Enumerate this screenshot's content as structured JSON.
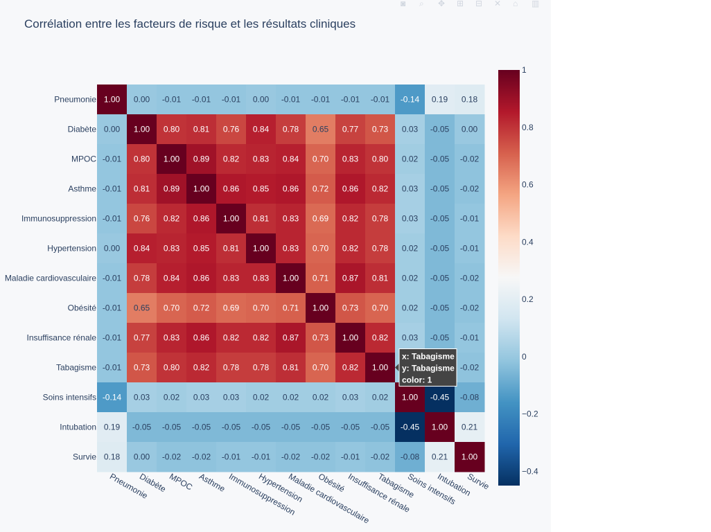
{
  "toolbar": {
    "icons": [
      "camera-icon",
      "zoom-icon",
      "pan-icon",
      "zoom-in-icon",
      "zoom-out-icon",
      "autoscale-icon",
      "reset-axes-icon",
      "plotly-logo-icon"
    ]
  },
  "chart_data": {
    "type": "heatmap",
    "title": "Corrélation entre les facteurs de risque et les résultats cliniques",
    "labels": [
      "Pneumonie",
      "Diabète",
      "MPOC",
      "Asthme",
      "Immunosuppression",
      "Hypertension",
      "Maladie cardiovasculaire",
      "Obésité",
      "Insuffisance rénale",
      "Tabagisme",
      "Soins intensifs",
      "Intubation",
      "Survie"
    ],
    "z": [
      [
        1.0,
        0.0,
        -0.01,
        -0.01,
        -0.01,
        0.0,
        -0.01,
        -0.01,
        -0.01,
        -0.01,
        -0.14,
        0.19,
        0.18
      ],
      [
        0.0,
        1.0,
        0.8,
        0.81,
        0.76,
        0.84,
        0.78,
        0.65,
        0.77,
        0.73,
        0.03,
        -0.05,
        0.0
      ],
      [
        -0.01,
        0.8,
        1.0,
        0.89,
        0.82,
        0.83,
        0.84,
        0.7,
        0.83,
        0.8,
        0.02,
        -0.05,
        -0.02
      ],
      [
        -0.01,
        0.81,
        0.89,
        1.0,
        0.86,
        0.85,
        0.86,
        0.72,
        0.86,
        0.82,
        0.03,
        -0.05,
        -0.02
      ],
      [
        -0.01,
        0.76,
        0.82,
        0.86,
        1.0,
        0.81,
        0.83,
        0.69,
        0.82,
        0.78,
        0.03,
        -0.05,
        -0.01
      ],
      [
        0.0,
        0.84,
        0.83,
        0.85,
        0.81,
        1.0,
        0.83,
        0.7,
        0.82,
        0.78,
        0.02,
        -0.05,
        -0.01
      ],
      [
        -0.01,
        0.78,
        0.84,
        0.86,
        0.83,
        0.83,
        1.0,
        0.71,
        0.87,
        0.81,
        0.02,
        -0.05,
        -0.02
      ],
      [
        -0.01,
        0.65,
        0.7,
        0.72,
        0.69,
        0.7,
        0.71,
        1.0,
        0.73,
        0.7,
        0.02,
        -0.05,
        -0.02
      ],
      [
        -0.01,
        0.77,
        0.83,
        0.86,
        0.82,
        0.82,
        0.87,
        0.73,
        1.0,
        0.82,
        0.03,
        -0.05,
        -0.01
      ],
      [
        -0.01,
        0.73,
        0.8,
        0.82,
        0.78,
        0.78,
        0.81,
        0.7,
        0.82,
        1.0,
        0.02,
        -0.05,
        -0.02
      ],
      [
        -0.14,
        0.03,
        0.02,
        0.03,
        0.03,
        0.02,
        0.02,
        0.02,
        0.03,
        0.02,
        1.0,
        -0.45,
        -0.08
      ],
      [
        0.19,
        -0.05,
        -0.05,
        -0.05,
        -0.05,
        -0.05,
        -0.05,
        -0.05,
        -0.05,
        -0.05,
        -0.45,
        1.0,
        0.21
      ],
      [
        0.18,
        0.0,
        -0.02,
        -0.02,
        -0.01,
        -0.01,
        -0.02,
        -0.02,
        -0.01,
        -0.02,
        -0.08,
        0.21,
        1.0
      ]
    ],
    "zmin": -0.45,
    "zmax": 1.0,
    "colorscale": "RdBu (reversed)",
    "colorbar": {
      "ticks": [
        1,
        0.8,
        0.6,
        0.4,
        0.2,
        0,
        -0.2,
        -0.4
      ],
      "tick_labels": [
        "1",
        "0.8",
        "0.6",
        "0.4",
        "0.2",
        "0",
        "−0.2",
        "−0.4"
      ]
    },
    "hover": {
      "row": "Tabagisme",
      "col": "Tabagisme",
      "lines": [
        "x: Tabagisme",
        "y: Tabagisme",
        "color: 1"
      ]
    }
  }
}
